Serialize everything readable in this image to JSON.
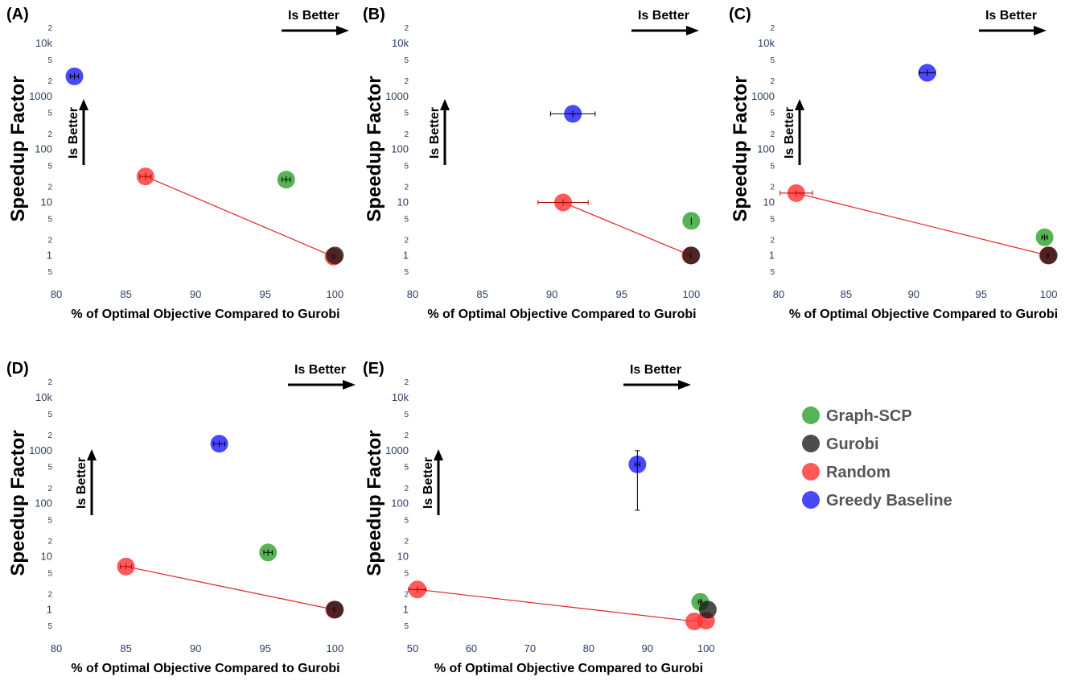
{
  "legend": [
    {
      "label": "Graph-SCP",
      "color": "#2ca02c",
      "opacity": 0.8
    },
    {
      "label": "Gurobi",
      "color": "#111111",
      "opacity": 0.75
    },
    {
      "label": "Random",
      "color": "#ff3030",
      "opacity": 0.8
    },
    {
      "label": "Greedy Baseline",
      "color": "#1a1aff",
      "opacity": 0.8
    }
  ],
  "annotations": {
    "x_better": "Is Better",
    "y_better": "Is Better"
  },
  "chart_data": [
    {
      "type": "scatter",
      "panel": "(A)",
      "xlabel": "% of Optimal Objective Compared to Gurobi",
      "ylabel": "Speedup Factor",
      "xlim": [
        80,
        100.5
      ],
      "xticks": [
        80,
        85,
        90,
        95,
        100
      ],
      "ylog": true,
      "ylim": [
        0.38,
        50000
      ],
      "series": [
        {
          "name": "Greedy Baseline",
          "points": [
            {
              "x": 81.3,
              "y": 2400,
              "xerr": 0.3
            }
          ]
        },
        {
          "name": "Graph-SCP",
          "points": [
            {
              "x": 96.5,
              "y": 27,
              "xerr": 0.3
            }
          ]
        },
        {
          "name": "Random",
          "points": [
            {
              "x": 86.4,
              "y": 31,
              "xerr": 0.4
            },
            {
              "x": 99.9,
              "y": 0.95,
              "xerr": 0.1
            }
          ],
          "line": true
        },
        {
          "name": "Gurobi",
          "points": [
            {
              "x": 100,
              "y": 1
            }
          ]
        }
      ]
    },
    {
      "type": "scatter",
      "panel": "(B)",
      "xlabel": "% of Optimal Objective Compared to Gurobi",
      "ylabel": "Speedup Factor",
      "xlim": [
        80,
        100.5
      ],
      "xticks": [
        80,
        85,
        90,
        95,
        100
      ],
      "ylog": true,
      "ylim": [
        0.38,
        50000
      ],
      "series": [
        {
          "name": "Greedy Baseline",
          "points": [
            {
              "x": 91.5,
              "y": 470,
              "xerr": 1.6
            }
          ]
        },
        {
          "name": "Graph-SCP",
          "points": [
            {
              "x": 100,
              "y": 4.5,
              "yerr": 0.7
            }
          ]
        },
        {
          "name": "Random",
          "points": [
            {
              "x": 90.8,
              "y": 10,
              "xerr": 1.8
            },
            {
              "x": 99.95,
              "y": 1,
              "xerr": 0.05
            }
          ],
          "line": true
        },
        {
          "name": "Gurobi",
          "points": [
            {
              "x": 100,
              "y": 1
            }
          ]
        }
      ]
    },
    {
      "type": "scatter",
      "panel": "(C)",
      "xlabel": "% of Optimal Objective Compared to Gurobi",
      "ylabel": "Speedup Factor",
      "xlim": [
        80,
        100.5
      ],
      "xticks": [
        80,
        85,
        90,
        95,
        100
      ],
      "ylog": true,
      "ylim": [
        0.38,
        50000
      ],
      "series": [
        {
          "name": "Greedy Baseline",
          "points": [
            {
              "x": 91,
              "y": 2800,
              "xerr": 0.6
            }
          ]
        },
        {
          "name": "Graph-SCP",
          "points": [
            {
              "x": 99.7,
              "y": 2.2,
              "xerr": 0.2
            }
          ]
        },
        {
          "name": "Random",
          "points": [
            {
              "x": 81.3,
              "y": 15,
              "xerr": 1.2
            },
            {
              "x": 99.95,
              "y": 1,
              "xerr": 0.05
            }
          ],
          "line": true
        },
        {
          "name": "Gurobi",
          "points": [
            {
              "x": 100,
              "y": 1
            }
          ]
        }
      ]
    },
    {
      "type": "scatter",
      "panel": "(D)",
      "xlabel": "% of Optimal Objective Compared to Gurobi",
      "ylabel": "Speedup Factor",
      "xlim": [
        80,
        100.5
      ],
      "xticks": [
        80,
        85,
        90,
        95,
        100
      ],
      "ylog": true,
      "ylim": [
        0.38,
        50000
      ],
      "series": [
        {
          "name": "Greedy Baseline",
          "points": [
            {
              "x": 91.7,
              "y": 1350,
              "xerr": 0.4
            }
          ]
        },
        {
          "name": "Graph-SCP",
          "points": [
            {
              "x": 95.2,
              "y": 12,
              "xerr": 0.3
            }
          ]
        },
        {
          "name": "Random",
          "points": [
            {
              "x": 85,
              "y": 6.5,
              "xerr": 0.4
            },
            {
              "x": 99.95,
              "y": 1,
              "xerr": 0.05
            }
          ],
          "line": true
        },
        {
          "name": "Gurobi",
          "points": [
            {
              "x": 100,
              "y": 1
            }
          ]
        }
      ]
    },
    {
      "type": "scatter",
      "panel": "(E)",
      "xlabel": "% of Optimal Objective Compared to Gurobi",
      "ylabel": "Speedup Factor",
      "xlim": [
        50,
        101
      ],
      "xticks": [
        50,
        60,
        70,
        80,
        90,
        100
      ],
      "ylog": true,
      "ylim": [
        0.38,
        50000
      ],
      "series": [
        {
          "name": "Greedy Baseline",
          "points": [
            {
              "x": 88.3,
              "y": 550,
              "xerr": 0.4,
              "ylow": 75,
              "yhigh": 1000
            }
          ]
        },
        {
          "name": "Graph-SCP",
          "points": [
            {
              "x": 99,
              "y": 1.4,
              "xerr": 0.3
            }
          ]
        },
        {
          "name": "Random",
          "points": [
            {
              "x": 50.8,
              "y": 2.4,
              "xerr": 1.5
            },
            {
              "x": 98,
              "y": 0.6
            },
            {
              "x": 100,
              "y": 0.62
            }
          ],
          "line": true
        },
        {
          "name": "Gurobi",
          "points": [
            {
              "x": 100.3,
              "y": 1
            }
          ]
        }
      ]
    }
  ]
}
